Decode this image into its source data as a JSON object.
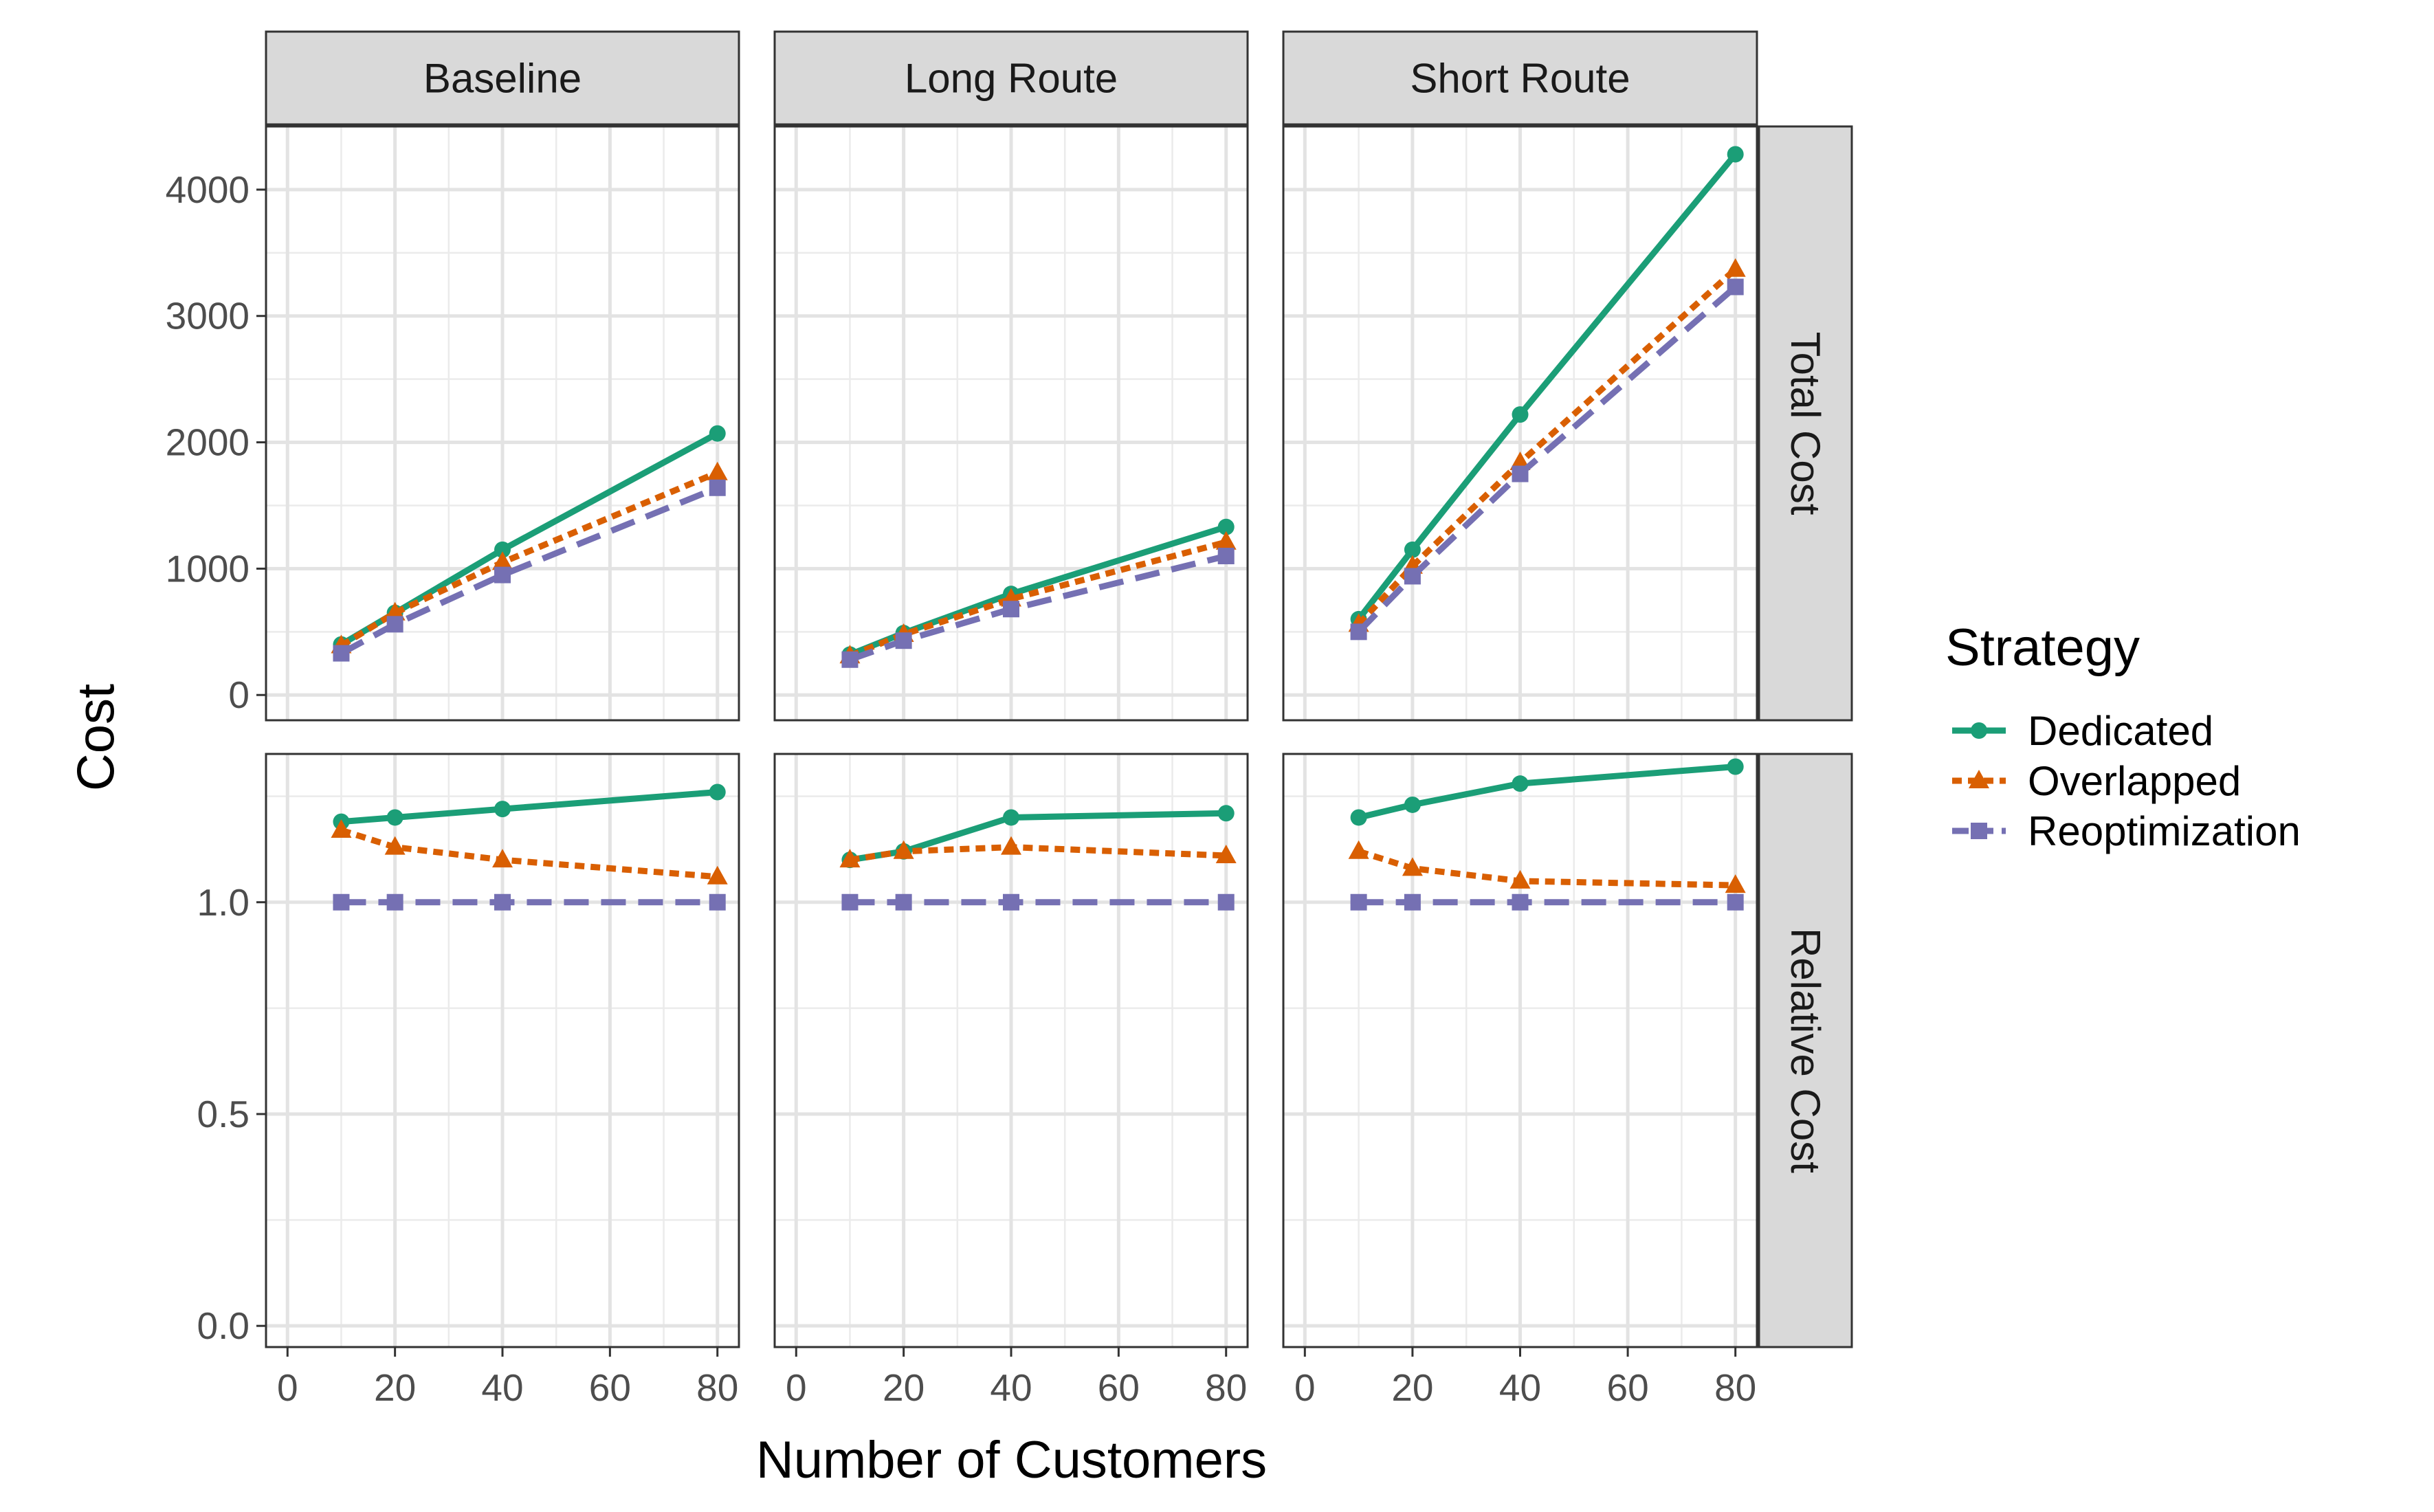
{
  "chart_data": {
    "type": "line",
    "facets": {
      "columns": [
        "Baseline",
        "Long Route",
        "Short Route"
      ],
      "rows": [
        "Total Cost",
        "Relative Cost"
      ]
    },
    "xlabel": "Number of Customers",
    "ylabel": "Cost",
    "x": [
      10,
      20,
      40,
      80
    ],
    "x_ticks": [
      "0",
      "20",
      "40",
      "60",
      "80"
    ],
    "xlim": [
      -4,
      84
    ],
    "rows": [
      {
        "name": "Total Cost",
        "ylim": [
          -200,
          4500
        ],
        "y_ticks": [
          "0",
          "1000",
          "2000",
          "3000",
          "4000"
        ],
        "y_tick_values": [
          0,
          1000,
          2000,
          3000,
          4000
        ]
      },
      {
        "name": "Relative Cost",
        "ylim": [
          -0.05,
          1.35
        ],
        "y_ticks": [
          "0.0",
          "0.5",
          "1.0"
        ],
        "y_tick_values": [
          0,
          0.5,
          1.0
        ]
      }
    ],
    "legend": {
      "title": "Strategy",
      "placement": "right",
      "entries": [
        "Dedicated",
        "Overlapped",
        "Reoptimization"
      ]
    },
    "series": [
      {
        "name": "Dedicated",
        "color": "#1b9e77",
        "marker": "circle",
        "linetype": "solid",
        "panels": {
          "Total Cost": {
            "Baseline": [
              400,
              650,
              1150,
              2070
            ],
            "Long Route": [
              320,
              490,
              800,
              1330
            ],
            "Short Route": [
              600,
              1150,
              2220,
              4280
            ]
          },
          "Relative Cost": {
            "Baseline": [
              1.19,
              1.2,
              1.22,
              1.26
            ],
            "Long Route": [
              1.1,
              1.12,
              1.2,
              1.21
            ],
            "Short Route": [
              1.2,
              1.23,
              1.28,
              1.32
            ]
          }
        }
      },
      {
        "name": "Overlapped",
        "color": "#d95f02",
        "marker": "triangle",
        "linetype": "dotted",
        "panels": {
          "Total Cost": {
            "Baseline": [
              390,
              650,
              1050,
              1760
            ],
            "Long Route": [
              310,
              480,
              760,
              1210
            ],
            "Short Route": [
              560,
              1020,
              1840,
              3370
            ]
          },
          "Relative Cost": {
            "Baseline": [
              1.17,
              1.13,
              1.1,
              1.06
            ],
            "Long Route": [
              1.1,
              1.12,
              1.13,
              1.11
            ],
            "Short Route": [
              1.12,
              1.08,
              1.05,
              1.04
            ]
          }
        }
      },
      {
        "name": "Reoptimization",
        "color": "#7570b3",
        "marker": "square",
        "linetype": "dashed",
        "panels": {
          "Total Cost": {
            "Baseline": [
              330,
              560,
              950,
              1640
            ],
            "Long Route": [
              280,
              430,
              680,
              1100
            ],
            "Short Route": [
              500,
              940,
              1750,
              3230
            ]
          },
          "Relative Cost": {
            "Baseline": [
              1.0,
              1.0,
              1.0,
              1.0
            ],
            "Long Route": [
              1.0,
              1.0,
              1.0,
              1.0
            ],
            "Short Route": [
              1.0,
              1.0,
              1.0,
              1.0
            ]
          }
        }
      }
    ]
  }
}
